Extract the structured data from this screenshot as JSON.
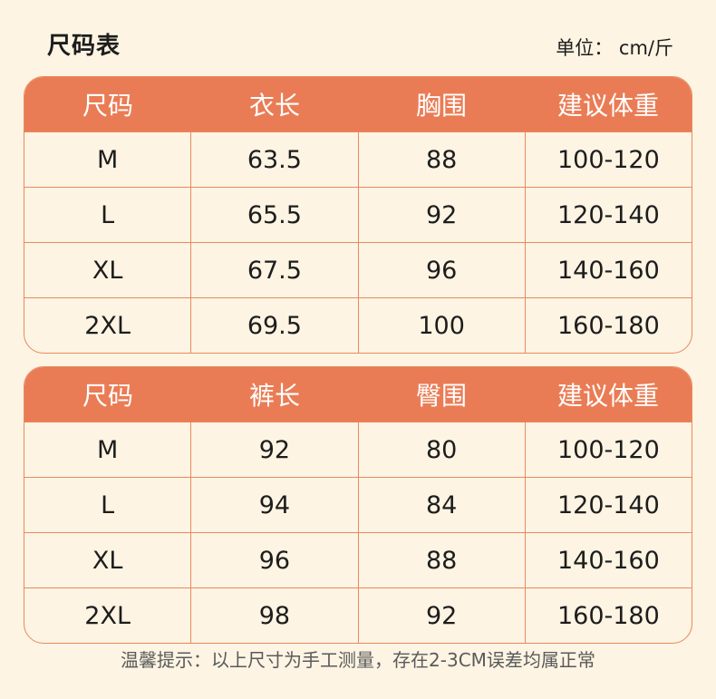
{
  "title": "尺码表",
  "unit": "单位： cm/斤",
  "tables": [
    {
      "headers": [
        "尺码",
        "衣长",
        "胸围",
        "建议体重"
      ],
      "rows": [
        [
          "M",
          "63.5",
          "88",
          "100-120"
        ],
        [
          "L",
          "65.5",
          "92",
          "120-140"
        ],
        [
          "XL",
          "67.5",
          "96",
          "140-160"
        ],
        [
          "2XL",
          "69.5",
          "100",
          "160-180"
        ]
      ]
    },
    {
      "headers": [
        "尺码",
        "裤长",
        "臀围",
        "建议体重"
      ],
      "rows": [
        [
          "M",
          "92",
          "80",
          "100-120"
        ],
        [
          "L",
          "94",
          "84",
          "120-140"
        ],
        [
          "XL",
          "96",
          "88",
          "140-160"
        ],
        [
          "2XL",
          "98",
          "92",
          "160-180"
        ]
      ]
    }
  ],
  "footnote": "温馨提示：以上尺寸为手工测量，存在2-3CM误差均属正常",
  "colors": {
    "header_bg": "#ea7c55",
    "border": "#e88a5e",
    "page_bg": "#fdf4e3"
  }
}
